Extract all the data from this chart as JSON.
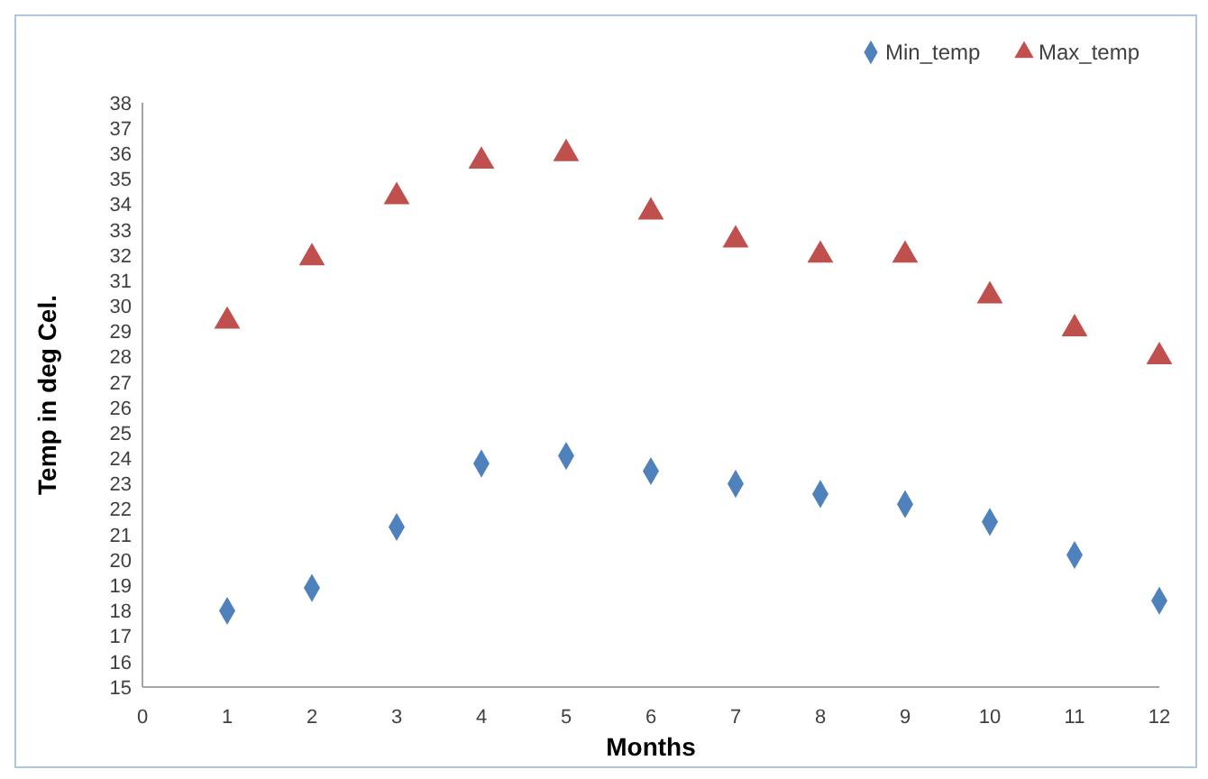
{
  "chart_data": {
    "type": "scatter",
    "xlabel": "Months",
    "ylabel": "Temp in deg Cel.",
    "x": [
      1,
      2,
      3,
      4,
      5,
      6,
      7,
      8,
      9,
      10,
      11,
      12
    ],
    "series": [
      {
        "name": "Min_temp",
        "color": "#4f81bd",
        "marker": "diamond",
        "values": [
          18.0,
          18.9,
          21.3,
          23.8,
          24.1,
          23.5,
          23.0,
          22.6,
          22.2,
          21.5,
          20.2,
          18.4
        ]
      },
      {
        "name": "Max_temp",
        "color": "#c0504d",
        "marker": "triangle",
        "values": [
          29.4,
          31.9,
          34.3,
          35.7,
          36.0,
          33.7,
          32.6,
          32.0,
          32.0,
          30.4,
          29.1,
          28.0
        ]
      }
    ],
    "xlim": [
      0,
      12
    ],
    "xticks": [
      0,
      1,
      2,
      3,
      4,
      5,
      6,
      7,
      8,
      9,
      10,
      11,
      12
    ],
    "ylim": [
      15,
      38
    ],
    "yticks": [
      15,
      16,
      17,
      18,
      19,
      20,
      21,
      22,
      23,
      24,
      25,
      26,
      27,
      28,
      29,
      30,
      31,
      32,
      33,
      34,
      35,
      36,
      37,
      38
    ],
    "grid": false,
    "legend": "top right"
  }
}
